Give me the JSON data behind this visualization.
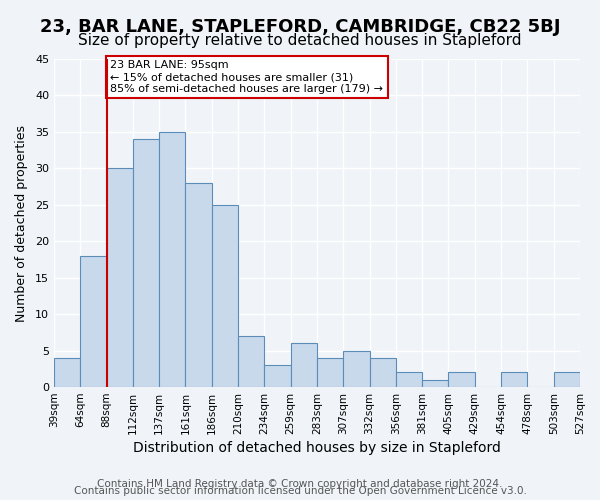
{
  "title": "23, BAR LANE, STAPLEFORD, CAMBRIDGE, CB22 5BJ",
  "subtitle": "Size of property relative to detached houses in Stapleford",
  "xlabel": "Distribution of detached houses by size in Stapleford",
  "ylabel": "Number of detached properties",
  "bar_values": [
    4,
    18,
    30,
    34,
    35,
    28,
    25,
    7,
    3,
    6,
    4,
    5,
    4,
    2,
    1,
    2,
    0,
    2,
    0,
    2
  ],
  "bin_labels": [
    "39sqm",
    "64sqm",
    "88sqm",
    "112sqm",
    "137sqm",
    "161sqm",
    "186sqm",
    "210sqm",
    "234sqm",
    "259sqm",
    "283sqm",
    "307sqm",
    "332sqm",
    "356sqm",
    "381sqm",
    "405sqm",
    "429sqm",
    "454sqm",
    "478sqm",
    "503sqm",
    "527sqm"
  ],
  "bar_color": "#c9d9ec",
  "bar_edge_color": "#5b8db8",
  "bar_width": 1.0,
  "vline_x": 2,
  "vline_color": "#cc0000",
  "annotation_text": "23 BAR LANE: 95sqm\n← 15% of detached houses are smaller (31)\n85% of semi-detached houses are larger (179) →",
  "annotation_box_color": "#ffffff",
  "annotation_box_edgecolor": "#cc0000",
  "ylim": [
    0,
    45
  ],
  "yticks": [
    0,
    5,
    10,
    15,
    20,
    25,
    30,
    35,
    40,
    45
  ],
  "footer1": "Contains HM Land Registry data © Crown copyright and database right 2024.",
  "footer2": "Contains public sector information licensed under the Open Government Licence v3.0.",
  "background_color": "#f0f4f8",
  "grid_color": "#ffffff",
  "title_fontsize": 13,
  "subtitle_fontsize": 11,
  "xlabel_fontsize": 10,
  "ylabel_fontsize": 9,
  "footer_fontsize": 7.5
}
